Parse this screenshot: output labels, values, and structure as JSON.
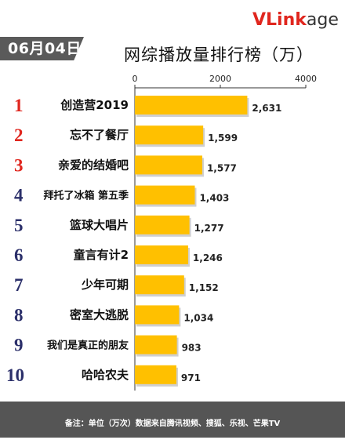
{
  "date_tag": "06月04日",
  "brand": {
    "part1": "VLink",
    "part2": "age"
  },
  "footer": {
    "note": "备注：单位（万次）数据来自腾讯视频、搜狐、乐视、芒果TV"
  },
  "colors": {
    "bar": "#ffc000",
    "rank_top3": "#e0261e",
    "rank_other": "#2b2f6a",
    "axis": "#333333"
  },
  "chart_data": {
    "type": "bar",
    "orientation": "horizontal",
    "title": "网综播放量排行榜（万）",
    "xlabel": "",
    "ylabel": "",
    "xlim": [
      0,
      4000
    ],
    "ticks": [
      0,
      2000,
      4000
    ],
    "tick_labels": [
      "0",
      "2000",
      "4000"
    ],
    "ranks": [
      "1",
      "2",
      "3",
      "4",
      "5",
      "6",
      "7",
      "8",
      "9",
      "10"
    ],
    "categories": [
      "创造营2019",
      "忘不了餐厅",
      "亲爱的结婚吧",
      "拜托了冰箱 第五季",
      "篮球大唱片",
      "童言有计2",
      "少年可期",
      "密室大逃脱",
      "我们是真正的朋友",
      "哈哈农夫"
    ],
    "values": [
      2631,
      1599,
      1577,
      1403,
      1277,
      1246,
      1152,
      1034,
      983,
      971
    ],
    "value_labels": [
      "2,631",
      "1,599",
      "1,577",
      "1,403",
      "1,277",
      "1,246",
      "1,152",
      "1,034",
      "983",
      "971"
    ],
    "grid": false,
    "legend": "none"
  }
}
